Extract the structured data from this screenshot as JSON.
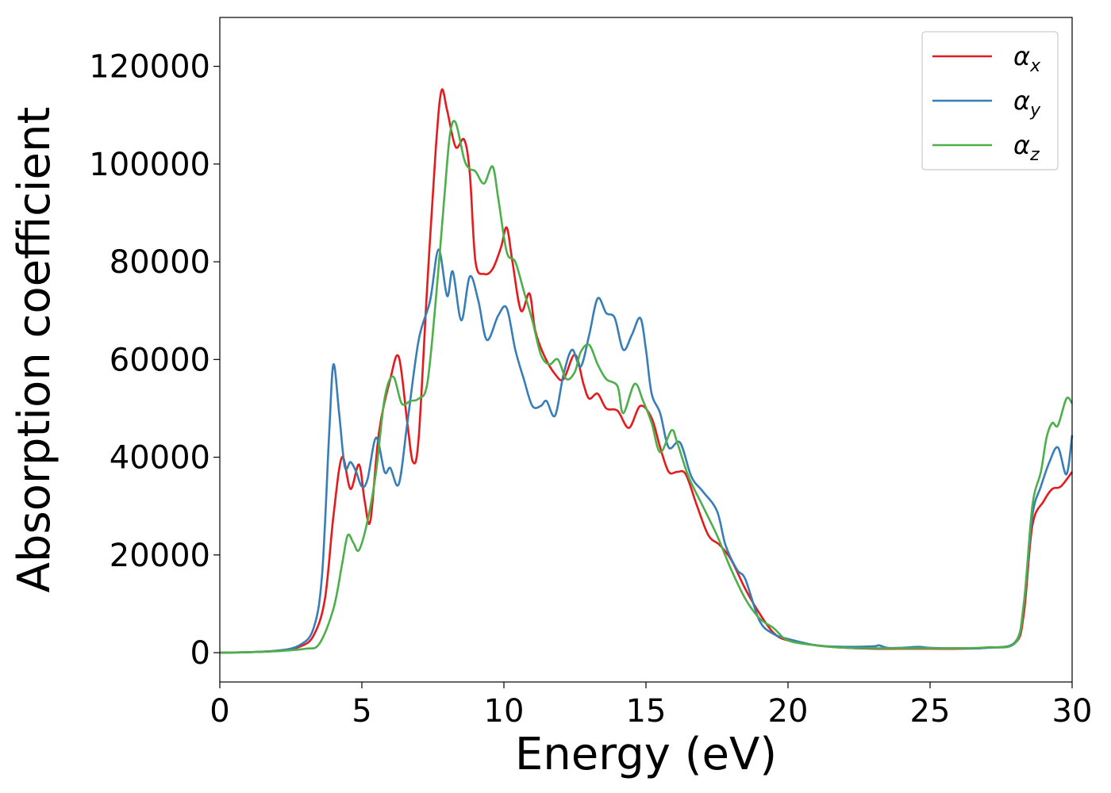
{
  "chart_data": {
    "type": "line",
    "title": "",
    "xlabel": "Energy (eV)",
    "ylabel": "Absorption coefficient",
    "xlim": [
      0,
      30
    ],
    "ylim": [
      -6000,
      130000
    ],
    "xticks": [
      0,
      5,
      10,
      15,
      20,
      25,
      30
    ],
    "yticks": [
      0,
      20000,
      40000,
      60000,
      80000,
      100000,
      120000
    ],
    "xtick_labels": [
      "0",
      "5",
      "10",
      "15",
      "20",
      "25",
      "30"
    ],
    "ytick_labels": [
      "0",
      "20000",
      "40000",
      "60000",
      "80000",
      "100000",
      "120000"
    ],
    "grid": false,
    "legend_position": "top-right",
    "series": [
      {
        "name": "α_x",
        "label_main": "α",
        "label_sub": "x",
        "color": "#e41a1c",
        "points": [
          [
            0,
            0
          ],
          [
            1,
            100
          ],
          [
            2,
            400
          ],
          [
            2.8,
            1200
          ],
          [
            3.3,
            3500
          ],
          [
            3.7,
            11000
          ],
          [
            4,
            28000
          ],
          [
            4.3,
            40000
          ],
          [
            4.6,
            33500
          ],
          [
            4.9,
            38500
          ],
          [
            5.1,
            31000
          ],
          [
            5.3,
            27000
          ],
          [
            5.6,
            45000
          ],
          [
            6,
            56000
          ],
          [
            6.3,
            60500
          ],
          [
            6.6,
            47000
          ],
          [
            6.8,
            39000
          ],
          [
            7,
            44000
          ],
          [
            7.3,
            75000
          ],
          [
            7.6,
            103000
          ],
          [
            7.8,
            115000
          ],
          [
            8,
            111000
          ],
          [
            8.3,
            103500
          ],
          [
            8.6,
            105000
          ],
          [
            8.8,
            98000
          ],
          [
            9,
            80000
          ],
          [
            9.3,
            77500
          ],
          [
            9.6,
            78500
          ],
          [
            9.9,
            83000
          ],
          [
            10.1,
            87000
          ],
          [
            10.3,
            80000
          ],
          [
            10.6,
            70000
          ],
          [
            10.9,
            73500
          ],
          [
            11.1,
            66000
          ],
          [
            11.4,
            61000
          ],
          [
            11.8,
            57000
          ],
          [
            12.1,
            56000
          ],
          [
            12.5,
            61000
          ],
          [
            12.8,
            55000
          ],
          [
            13,
            52000
          ],
          [
            13.3,
            53000
          ],
          [
            13.6,
            50000
          ],
          [
            14,
            49500
          ],
          [
            14.4,
            46000
          ],
          [
            14.8,
            50500
          ],
          [
            15.2,
            48000
          ],
          [
            15.5,
            42000
          ],
          [
            15.8,
            37000
          ],
          [
            16.1,
            37000
          ],
          [
            16.4,
            36500
          ],
          [
            16.8,
            30000
          ],
          [
            17.2,
            24000
          ],
          [
            17.6,
            22000
          ],
          [
            18,
            19000
          ],
          [
            18.5,
            13000
          ],
          [
            19,
            8000
          ],
          [
            19.5,
            4000
          ],
          [
            20,
            2500
          ],
          [
            21,
            1500
          ],
          [
            22,
            1000
          ],
          [
            23,
            800
          ],
          [
            24,
            800
          ],
          [
            25,
            800
          ],
          [
            26,
            800
          ],
          [
            27,
            1000
          ],
          [
            28,
            2000
          ],
          [
            28.3,
            8000
          ],
          [
            28.6,
            26000
          ],
          [
            29,
            31000
          ],
          [
            29.3,
            33500
          ],
          [
            29.6,
            34000
          ],
          [
            30,
            37000
          ]
        ]
      },
      {
        "name": "α_y",
        "label_main": "α",
        "label_sub": "y",
        "color": "#377eb8",
        "points": [
          [
            0,
            0
          ],
          [
            1,
            100
          ],
          [
            2,
            400
          ],
          [
            2.8,
            1500
          ],
          [
            3.3,
            5000
          ],
          [
            3.6,
            16000
          ],
          [
            3.85,
            45000
          ],
          [
            4,
            59000
          ],
          [
            4.2,
            49000
          ],
          [
            4.4,
            38000
          ],
          [
            4.6,
            39000
          ],
          [
            4.8,
            37000
          ],
          [
            5,
            34000
          ],
          [
            5.2,
            35500
          ],
          [
            5.5,
            44000
          ],
          [
            5.8,
            37000
          ],
          [
            6,
            37800
          ],
          [
            6.3,
            34500
          ],
          [
            6.6,
            47000
          ],
          [
            7,
            64000
          ],
          [
            7.4,
            72000
          ],
          [
            7.7,
            82500
          ],
          [
            8,
            73000
          ],
          [
            8.2,
            78000
          ],
          [
            8.5,
            68000
          ],
          [
            8.8,
            77000
          ],
          [
            9.1,
            72000
          ],
          [
            9.4,
            64000
          ],
          [
            9.8,
            69000
          ],
          [
            10.1,
            70500
          ],
          [
            10.4,
            62000
          ],
          [
            10.7,
            56000
          ],
          [
            11,
            50500
          ],
          [
            11.3,
            50500
          ],
          [
            11.5,
            51500
          ],
          [
            11.8,
            48500
          ],
          [
            12.1,
            57000
          ],
          [
            12.4,
            62000
          ],
          [
            12.7,
            58500
          ],
          [
            13,
            65000
          ],
          [
            13.3,
            72500
          ],
          [
            13.6,
            69500
          ],
          [
            13.9,
            68500
          ],
          [
            14.2,
            62000
          ],
          [
            14.5,
            65000
          ],
          [
            14.8,
            68500
          ],
          [
            15,
            62000
          ],
          [
            15.2,
            53000
          ],
          [
            15.5,
            49000
          ],
          [
            15.8,
            42000
          ],
          [
            16.2,
            43000
          ],
          [
            16.6,
            36000
          ],
          [
            17,
            33000
          ],
          [
            17.5,
            29000
          ],
          [
            17.8,
            22000
          ],
          [
            18.2,
            17000
          ],
          [
            18.5,
            15000
          ],
          [
            19,
            6500
          ],
          [
            19.5,
            3800
          ],
          [
            20,
            2800
          ],
          [
            21,
            1500
          ],
          [
            22,
            1200
          ],
          [
            23,
            1300
          ],
          [
            23.2,
            1500
          ],
          [
            23.5,
            1000
          ],
          [
            24,
            1000
          ],
          [
            24.6,
            1200
          ],
          [
            25,
            1000
          ],
          [
            26,
            900
          ],
          [
            27,
            1000
          ],
          [
            28,
            2200
          ],
          [
            28.3,
            10000
          ],
          [
            28.6,
            28000
          ],
          [
            28.9,
            34000
          ],
          [
            29.2,
            39000
          ],
          [
            29.5,
            42000
          ],
          [
            29.8,
            36500
          ],
          [
            30,
            44500
          ]
        ]
      },
      {
        "name": "α_z",
        "label_main": "α",
        "label_sub": "z",
        "color": "#4daf4a",
        "points": [
          [
            0,
            0
          ],
          [
            1,
            100
          ],
          [
            2,
            300
          ],
          [
            3,
            800
          ],
          [
            3.5,
            1800
          ],
          [
            4,
            9000
          ],
          [
            4.3,
            18000
          ],
          [
            4.5,
            24000
          ],
          [
            4.7,
            22500
          ],
          [
            4.9,
            21000
          ],
          [
            5.2,
            27000
          ],
          [
            5.5,
            37000
          ],
          [
            5.8,
            52000
          ],
          [
            6.1,
            56500
          ],
          [
            6.4,
            51000
          ],
          [
            6.7,
            51500
          ],
          [
            7,
            52000
          ],
          [
            7.3,
            55000
          ],
          [
            7.6,
            72000
          ],
          [
            7.9,
            93000
          ],
          [
            8.1,
            106000
          ],
          [
            8.3,
            108500
          ],
          [
            8.6,
            101000
          ],
          [
            8.8,
            99000
          ],
          [
            9,
            98500
          ],
          [
            9.3,
            96000
          ],
          [
            9.6,
            99500
          ],
          [
            9.8,
            93000
          ],
          [
            10.1,
            82000
          ],
          [
            10.4,
            80000
          ],
          [
            10.7,
            74000
          ],
          [
            11,
            68000
          ],
          [
            11.3,
            61000
          ],
          [
            11.6,
            59000
          ],
          [
            11.9,
            60000
          ],
          [
            12.2,
            56000
          ],
          [
            12.5,
            57500
          ],
          [
            12.7,
            61500
          ],
          [
            13,
            63000
          ],
          [
            13.3,
            59000
          ],
          [
            13.6,
            56000
          ],
          [
            14,
            54500
          ],
          [
            14.2,
            49000
          ],
          [
            14.6,
            55000
          ],
          [
            14.9,
            51500
          ],
          [
            15.2,
            47000
          ],
          [
            15.5,
            41000
          ],
          [
            15.9,
            45500
          ],
          [
            16.1,
            43000
          ],
          [
            16.5,
            36000
          ],
          [
            17,
            30000
          ],
          [
            17.5,
            24000
          ],
          [
            18,
            17000
          ],
          [
            18.5,
            11000
          ],
          [
            19,
            7000
          ],
          [
            19.5,
            5000
          ],
          [
            20,
            2500
          ],
          [
            21,
            1500
          ],
          [
            22,
            1000
          ],
          [
            23,
            900
          ],
          [
            24,
            900
          ],
          [
            25,
            900
          ],
          [
            26,
            900
          ],
          [
            27,
            1100
          ],
          [
            28,
            2000
          ],
          [
            28.3,
            10000
          ],
          [
            28.6,
            30000
          ],
          [
            28.9,
            37000
          ],
          [
            29.1,
            44000
          ],
          [
            29.3,
            47000
          ],
          [
            29.5,
            46500
          ],
          [
            29.8,
            52000
          ],
          [
            30,
            51000
          ]
        ]
      }
    ]
  }
}
